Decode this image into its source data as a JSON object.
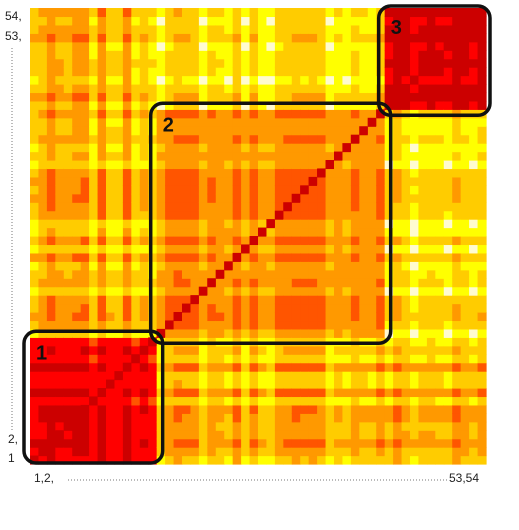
{
  "chart_data": {
    "type": "heatmap",
    "title": "",
    "xlabel": "",
    "ylabel": "",
    "n": 54,
    "x_tick_labels": {
      "start": "1,2,",
      "end": "53,54"
    },
    "y_tick_labels": {
      "top1": "54,",
      "top2": "53,",
      "bottom1": "2,",
      "bottom2": "1"
    },
    "colormap": [
      "#fffbd0",
      "#ffff00",
      "#ffcc00",
      "#ff9900",
      "#ff5500",
      "#ff0000",
      "#cc0000"
    ],
    "diagonal_value": 1.0,
    "blocks": [
      {
        "label": "1",
        "start_index": 1,
        "end_index": 15
      },
      {
        "label": "2",
        "start_index": 16,
        "end_index": 42
      },
      {
        "label": "3",
        "start_index": 43,
        "end_index": 54
      }
    ]
  }
}
